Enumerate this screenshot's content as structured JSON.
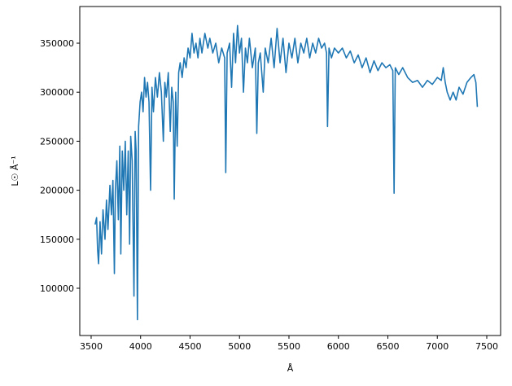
{
  "chart_data": {
    "type": "line",
    "xlabel": "Å",
    "ylabel": "L☉ Å⁻¹",
    "xlim": [
      3385,
      7640
    ],
    "ylim": [
      51800,
      387400
    ],
    "xticks": [
      3500,
      4000,
      4500,
      5000,
      5500,
      6000,
      6500,
      7000,
      7500
    ],
    "yticks": [
      100000,
      150000,
      200000,
      250000,
      300000,
      350000
    ],
    "x": [
      3540,
      3555,
      3565,
      3575,
      3590,
      3605,
      3620,
      3640,
      3655,
      3670,
      3690,
      3705,
      3720,
      3735,
      3745,
      3760,
      3775,
      3790,
      3800,
      3815,
      3830,
      3845,
      3860,
      3875,
      3889,
      3900,
      3915,
      3933,
      3945,
      3955,
      3968,
      3980,
      3995,
      4010,
      4025,
      4040,
      4055,
      4070,
      4085,
      4101,
      4115,
      4130,
      4150,
      4170,
      4190,
      4210,
      4230,
      4245,
      4260,
      4280,
      4300,
      4315,
      4330,
      4340,
      4355,
      4370,
      4385,
      4400,
      4420,
      4440,
      4460,
      4480,
      4500,
      4520,
      4540,
      4560,
      4580,
      4600,
      4620,
      4650,
      4680,
      4700,
      4730,
      4760,
      4790,
      4820,
      4850,
      4861,
      4875,
      4900,
      4920,
      4940,
      4960,
      4980,
      5000,
      5020,
      5040,
      5060,
      5080,
      5100,
      5130,
      5160,
      5175,
      5190,
      5210,
      5240,
      5260,
      5290,
      5320,
      5350,
      5380,
      5410,
      5440,
      5470,
      5500,
      5530,
      5560,
      5590,
      5620,
      5650,
      5680,
      5710,
      5740,
      5770,
      5800,
      5830,
      5860,
      5880,
      5890,
      5905,
      5930,
      5960,
      6000,
      6040,
      6080,
      6120,
      6160,
      6200,
      6240,
      6280,
      6320,
      6360,
      6400,
      6440,
      6480,
      6520,
      6550,
      6563,
      6575,
      6610,
      6650,
      6700,
      6750,
      6800,
      6850,
      6900,
      6950,
      7000,
      7040,
      7060,
      7080,
      7100,
      7130,
      7160,
      7190,
      7220,
      7260,
      7300,
      7340,
      7370,
      7390,
      7405
    ],
    "series": [
      {
        "color": "#1f77b4",
        "values": [
          165000,
          172000,
          140000,
          125000,
          168000,
          135000,
          180000,
          150000,
          190000,
          160000,
          205000,
          175000,
          210000,
          115000,
          200000,
          230000,
          170000,
          245000,
          135000,
          240000,
          200000,
          250000,
          175000,
          240000,
          145000,
          255000,
          230000,
          92000,
          260000,
          240000,
          68000,
          265000,
          290000,
          300000,
          280000,
          315000,
          295000,
          310000,
          290000,
          200000,
          305000,
          280000,
          315000,
          295000,
          320000,
          300000,
          250000,
          310000,
          295000,
          320000,
          260000,
          305000,
          290000,
          191000,
          300000,
          245000,
          320000,
          330000,
          315000,
          335000,
          325000,
          345000,
          335000,
          360000,
          340000,
          350000,
          335000,
          355000,
          340000,
          360000,
          345000,
          355000,
          340000,
          350000,
          330000,
          345000,
          335000,
          218000,
          340000,
          350000,
          305000,
          360000,
          330000,
          368000,
          340000,
          355000,
          300000,
          345000,
          330000,
          355000,
          325000,
          345000,
          258000,
          330000,
          340000,
          300000,
          345000,
          330000,
          355000,
          325000,
          365000,
          330000,
          355000,
          320000,
          350000,
          335000,
          355000,
          330000,
          350000,
          340000,
          355000,
          335000,
          350000,
          340000,
          355000,
          345000,
          350000,
          340000,
          265000,
          345000,
          335000,
          345000,
          340000,
          345000,
          335000,
          342000,
          330000,
          338000,
          325000,
          335000,
          320000,
          332000,
          322000,
          330000,
          325000,
          328000,
          322000,
          197000,
          325000,
          318000,
          325000,
          315000,
          310000,
          312000,
          305000,
          312000,
          308000,
          315000,
          312000,
          325000,
          310000,
          300000,
          292000,
          300000,
          292000,
          305000,
          298000,
          310000,
          315000,
          318000,
          310000,
          285000
        ]
      }
    ]
  }
}
